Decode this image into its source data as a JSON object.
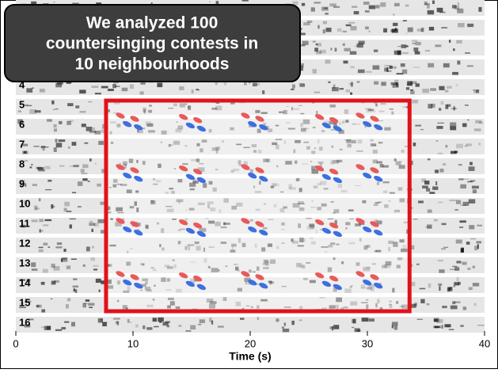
{
  "chart_data": {
    "type": "spectrogram",
    "callout": [
      "We analyzed 100",
      "countersinging contests in",
      "10 neighbourhoods"
    ],
    "categories": [
      "4",
      "5",
      "6",
      "7",
      "8",
      "9",
      "10",
      "11",
      "12",
      "13",
      "14",
      "15",
      "16"
    ],
    "x_label": "Time (s)",
    "xlim": [
      0,
      40
    ],
    "xticks": [
      0,
      10,
      20,
      30,
      40
    ],
    "highlight": [
      7.7,
      33.6
    ],
    "highlight_color": "#e0121b"
  }
}
